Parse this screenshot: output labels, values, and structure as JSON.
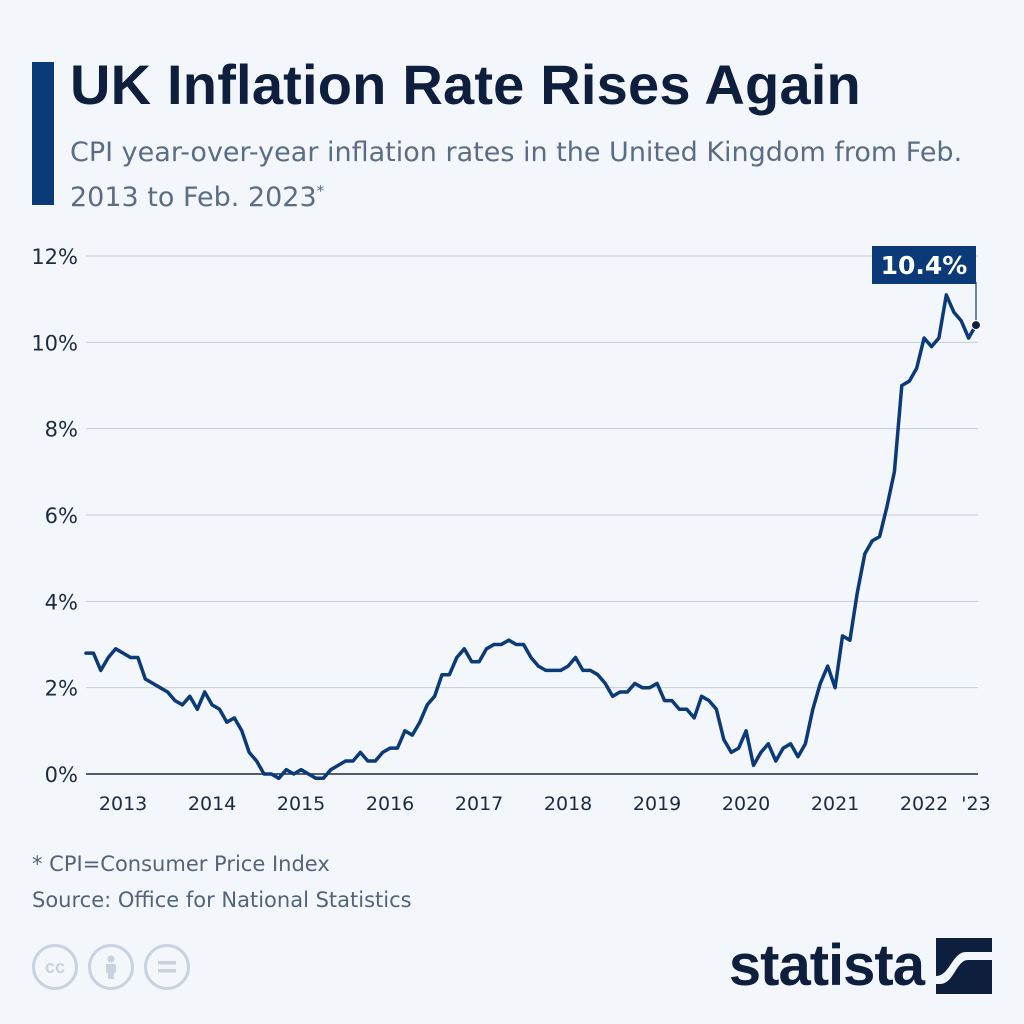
{
  "title": "UK Inflation Rate Rises Again",
  "subtitle": "CPI year-over-year inflation rates in the United Kingdom from Feb. 2013 to Feb. 2023",
  "subtitle_mark": "*",
  "footnote": "* CPI=Consumer Price Index",
  "source": "Source: Office for National Statistics",
  "brand": "statista",
  "icons": [
    "creative-commons-icon",
    "attribution-icon",
    "no-derivatives-icon"
  ],
  "colors": {
    "line": "#0b3a79",
    "accent": "#0b3a79",
    "grid": "#c5ccd6",
    "text": "#0d1f3d"
  },
  "chart_data": {
    "type": "line",
    "title": "UK Inflation Rate Rises Again",
    "ylim": [
      0,
      12
    ],
    "yticks": [
      0,
      2,
      4,
      6,
      8,
      10,
      12
    ],
    "ytick_labels": [
      "0%",
      "2%",
      "4%",
      "6%",
      "8%",
      "10%",
      "12%"
    ],
    "xlim": [
      "2013-02",
      "2023-02"
    ],
    "xtick_labels": [
      {
        "label": "2013",
        "date": "2013-07"
      },
      {
        "label": "2014",
        "date": "2014-07"
      },
      {
        "label": "2015",
        "date": "2015-07"
      },
      {
        "label": "2016",
        "date": "2016-07"
      },
      {
        "label": "2017",
        "date": "2017-07"
      },
      {
        "label": "2018",
        "date": "2018-07"
      },
      {
        "label": "2019",
        "date": "2019-07"
      },
      {
        "label": "2020",
        "date": "2020-07"
      },
      {
        "label": "2021",
        "date": "2021-07"
      },
      {
        "label": "2022",
        "date": "2022-07"
      },
      {
        "label": "'23",
        "date": "2023-02"
      }
    ],
    "grid": true,
    "annotation": {
      "label": "10.4%",
      "date": "2023-02",
      "value": 10.4
    },
    "x": [
      "2013-02",
      "2013-03",
      "2013-04",
      "2013-05",
      "2013-06",
      "2013-07",
      "2013-08",
      "2013-09",
      "2013-10",
      "2013-11",
      "2013-12",
      "2014-01",
      "2014-02",
      "2014-03",
      "2014-04",
      "2014-05",
      "2014-06",
      "2014-07",
      "2014-08",
      "2014-09",
      "2014-10",
      "2014-11",
      "2014-12",
      "2015-01",
      "2015-02",
      "2015-03",
      "2015-04",
      "2015-05",
      "2015-06",
      "2015-07",
      "2015-08",
      "2015-09",
      "2015-10",
      "2015-11",
      "2015-12",
      "2016-01",
      "2016-02",
      "2016-03",
      "2016-04",
      "2016-05",
      "2016-06",
      "2016-07",
      "2016-08",
      "2016-09",
      "2016-10",
      "2016-11",
      "2016-12",
      "2017-01",
      "2017-02",
      "2017-03",
      "2017-04",
      "2017-05",
      "2017-06",
      "2017-07",
      "2017-08",
      "2017-09",
      "2017-10",
      "2017-11",
      "2017-12",
      "2018-01",
      "2018-02",
      "2018-03",
      "2018-04",
      "2018-05",
      "2018-06",
      "2018-07",
      "2018-08",
      "2018-09",
      "2018-10",
      "2018-11",
      "2018-12",
      "2019-01",
      "2019-02",
      "2019-03",
      "2019-04",
      "2019-05",
      "2019-06",
      "2019-07",
      "2019-08",
      "2019-09",
      "2019-10",
      "2019-11",
      "2019-12",
      "2020-01",
      "2020-02",
      "2020-03",
      "2020-04",
      "2020-05",
      "2020-06",
      "2020-07",
      "2020-08",
      "2020-09",
      "2020-10",
      "2020-11",
      "2020-12",
      "2021-01",
      "2021-02",
      "2021-03",
      "2021-04",
      "2021-05",
      "2021-06",
      "2021-07",
      "2021-08",
      "2021-09",
      "2021-10",
      "2021-11",
      "2021-12",
      "2022-01",
      "2022-02",
      "2022-03",
      "2022-04",
      "2022-05",
      "2022-06",
      "2022-07",
      "2022-08",
      "2022-09",
      "2022-10",
      "2022-11",
      "2022-12",
      "2023-01",
      "2023-02"
    ],
    "series": [
      {
        "values": [
          2.8,
          2.8,
          2.4,
          2.7,
          2.9,
          2.8,
          2.7,
          2.7,
          2.2,
          2.1,
          2.0,
          1.9,
          1.7,
          1.6,
          1.8,
          1.5,
          1.9,
          1.6,
          1.5,
          1.2,
          1.3,
          1.0,
          0.5,
          0.3,
          0.0,
          0.0,
          -0.1,
          0.1,
          0.0,
          0.1,
          0.0,
          -0.1,
          -0.1,
          0.1,
          0.2,
          0.3,
          0.3,
          0.5,
          0.3,
          0.3,
          0.5,
          0.6,
          0.6,
          1.0,
          0.9,
          1.2,
          1.6,
          1.8,
          2.3,
          2.3,
          2.7,
          2.9,
          2.6,
          2.6,
          2.9,
          3.0,
          3.0,
          3.1,
          3.0,
          3.0,
          2.7,
          2.5,
          2.4,
          2.4,
          2.4,
          2.5,
          2.7,
          2.4,
          2.4,
          2.3,
          2.1,
          1.8,
          1.9,
          1.9,
          2.1,
          2.0,
          2.0,
          2.1,
          1.7,
          1.7,
          1.5,
          1.5,
          1.3,
          1.8,
          1.7,
          1.5,
          0.8,
          0.5,
          0.6,
          1.0,
          0.2,
          0.5,
          0.7,
          0.3,
          0.6,
          0.7,
          0.4,
          0.7,
          1.5,
          2.1,
          2.5,
          2.0,
          3.2,
          3.1,
          4.2,
          5.1,
          5.4,
          5.5,
          6.2,
          7.0,
          9.0,
          9.1,
          9.4,
          10.1,
          9.9,
          10.1,
          11.1,
          10.7,
          10.5,
          10.1,
          10.4
        ]
      }
    ]
  }
}
